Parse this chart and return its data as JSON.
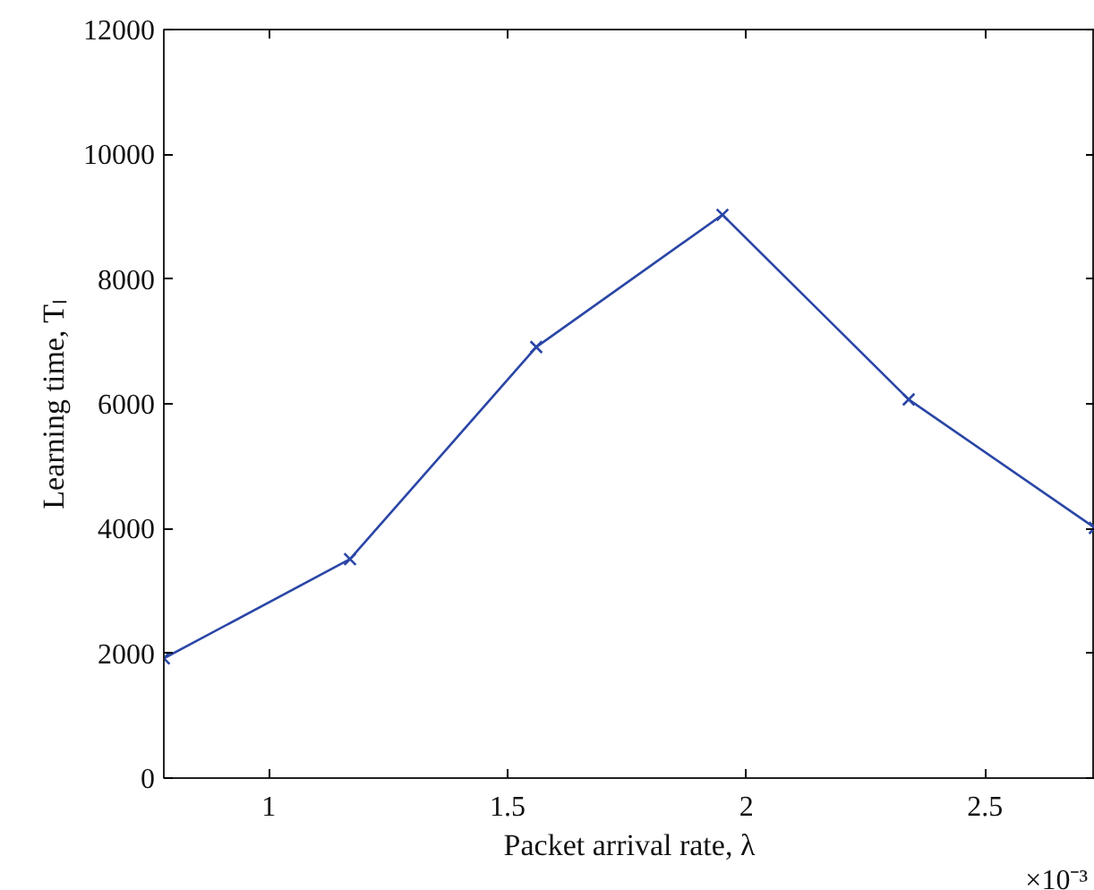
{
  "chart_data": {
    "type": "line",
    "xlabel": "Packet arrival rate, λ",
    "ylabel": "Learning time, Tₗ",
    "x": [
      0.78,
      1.17,
      1.56,
      1.95,
      2.34,
      2.73
    ],
    "series": [
      {
        "color": "#2a46a6",
        "values": [
          1920,
          3510,
          6910,
          9030,
          6070,
          4010
        ]
      }
    ],
    "xlim": [
      0.78,
      2.73
    ],
    "xticks": [
      1,
      1.5,
      2,
      2.5
    ],
    "ylim": [
      0,
      12000
    ],
    "yticks": [
      0,
      2000,
      4000,
      6000,
      8000,
      10000,
      12000
    ],
    "marker": "cross",
    "line_style": "solid",
    "grid": false,
    "annotations": [
      "×10⁻³"
    ]
  }
}
